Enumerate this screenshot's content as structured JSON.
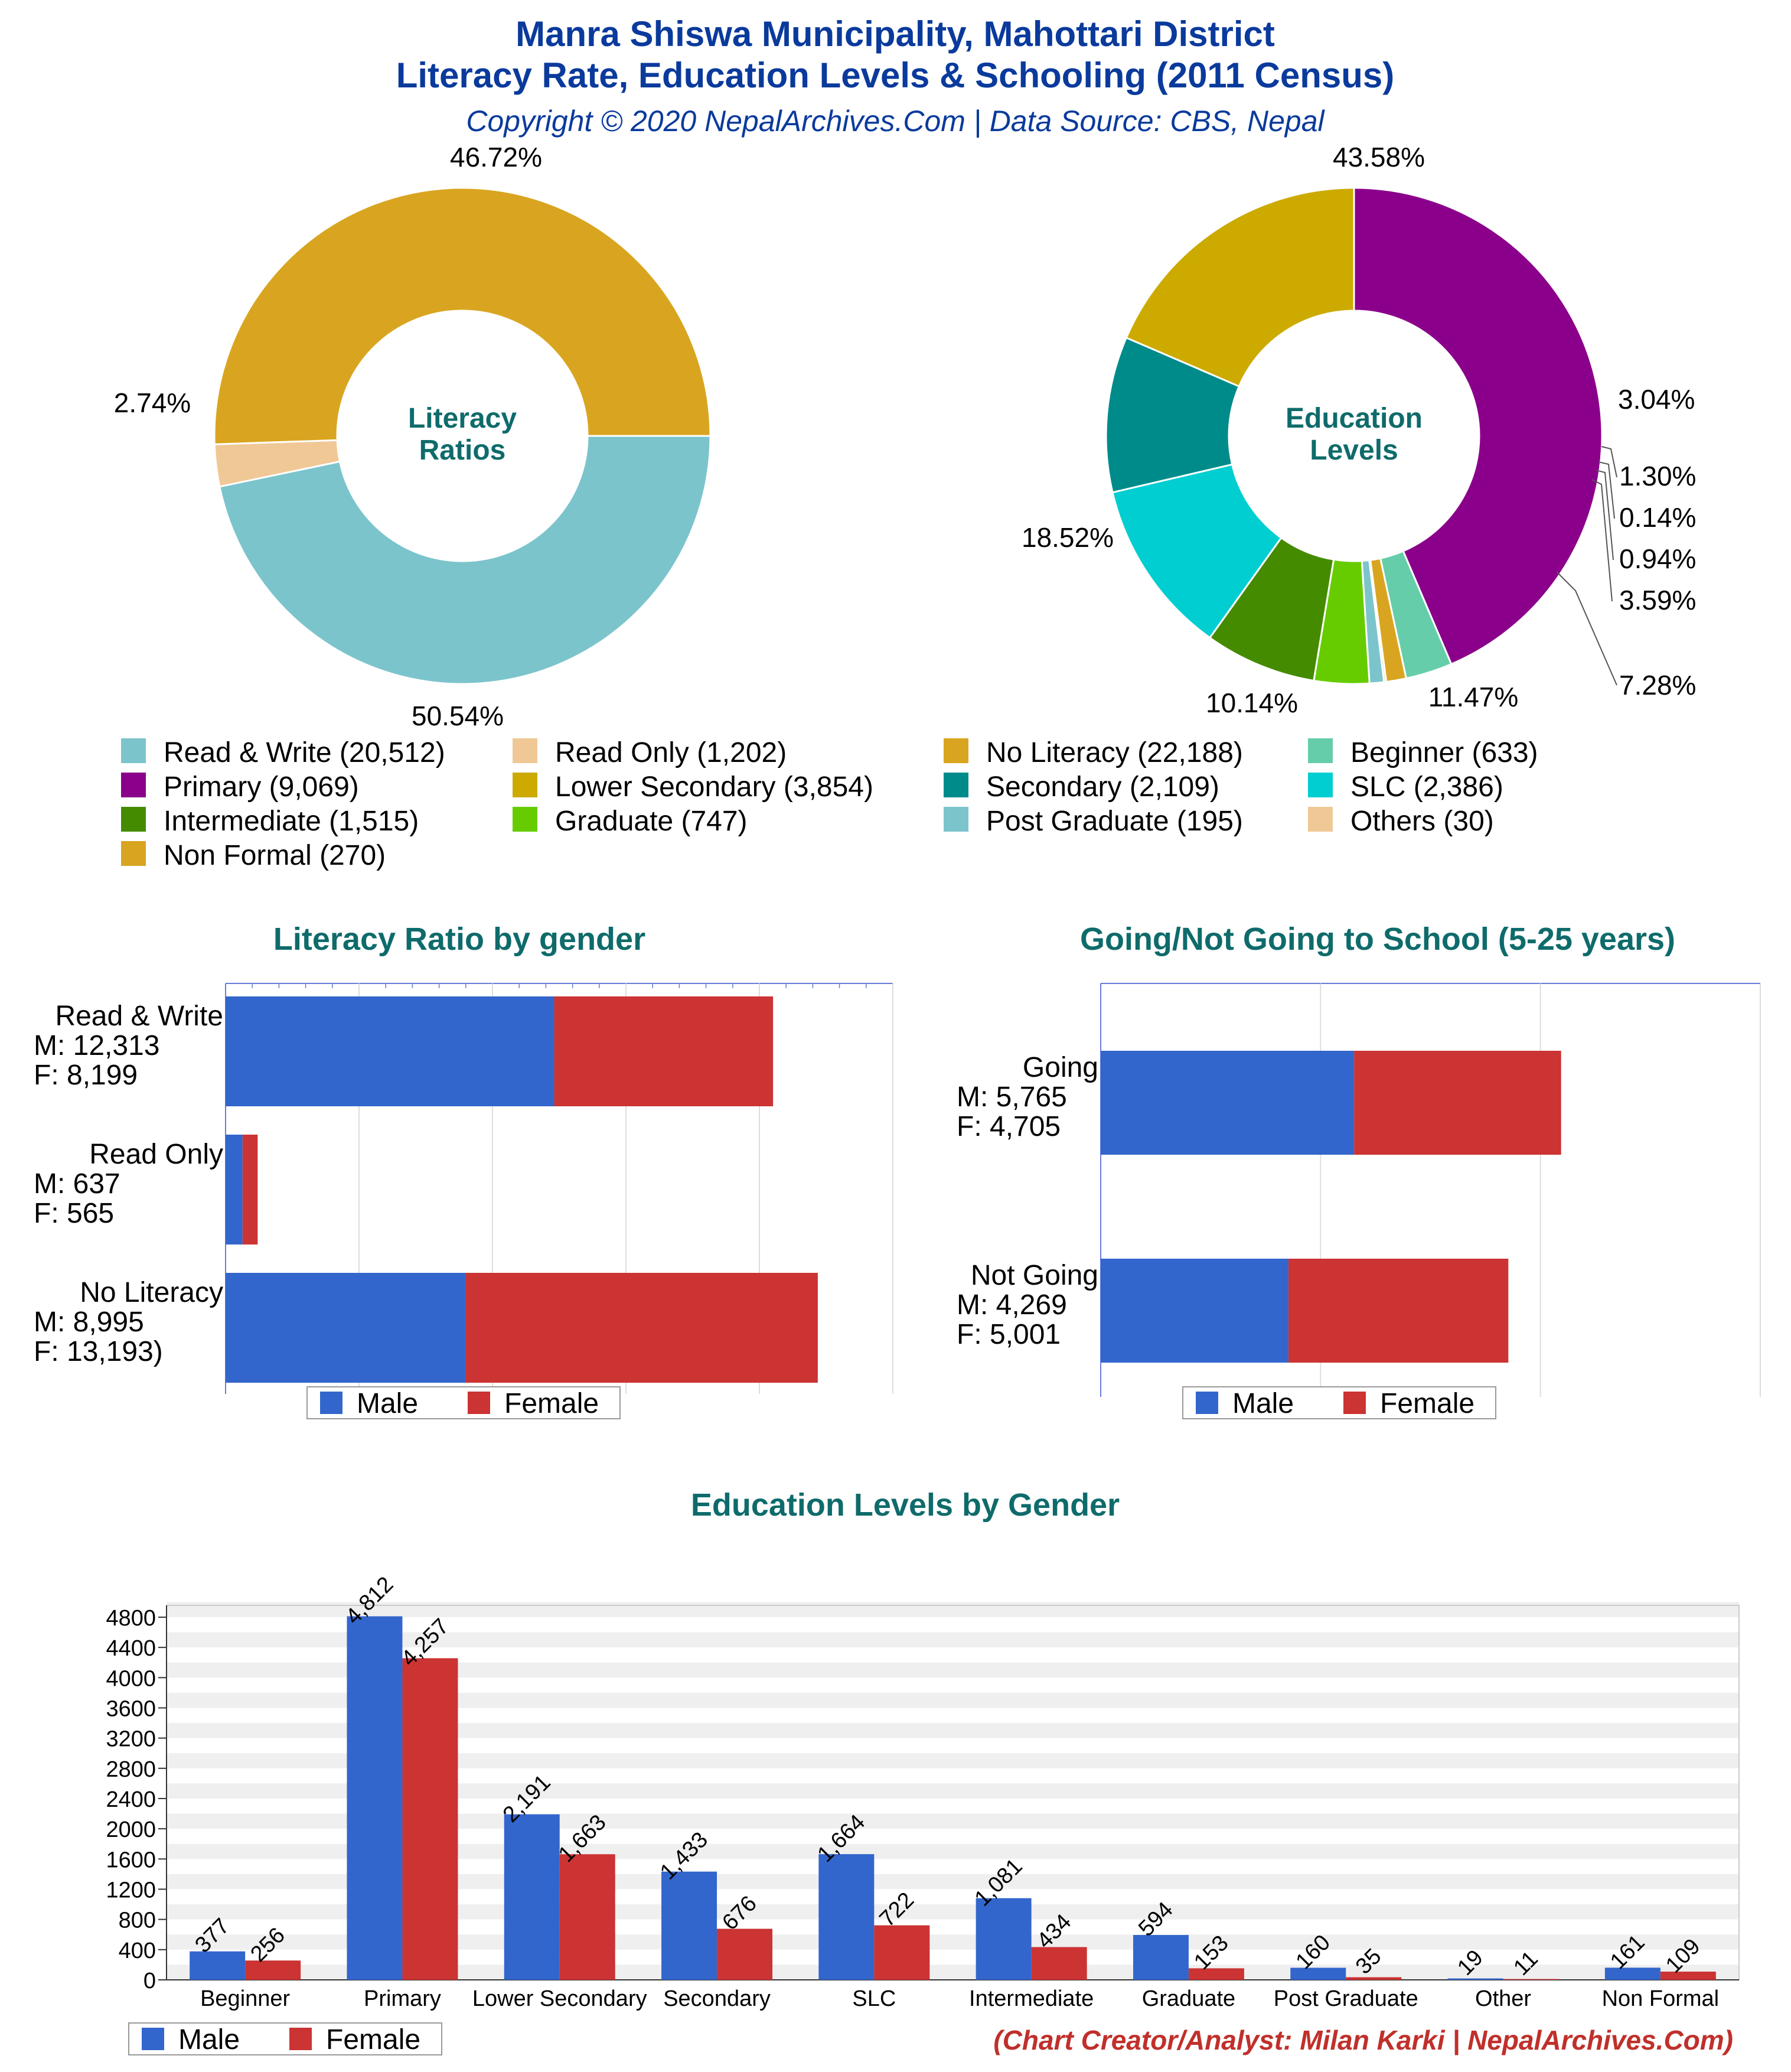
{
  "header": {
    "title_line1": "Manra Shiswa Municipality, Mahottari District",
    "title_line2": "Literacy Rate, Education Levels & Schooling (2011 Census)",
    "subtitle": "Copyright © 2020 NepalArchives.Com | Data Source: CBS, Nepal"
  },
  "colors": {
    "title": "#0a3a9c",
    "section_title": "#0f6b6b",
    "male": "#3366cc",
    "female": "#cc3333",
    "footer": "#c0302b"
  },
  "chart_data": [
    {
      "type": "pie",
      "center_label_line1": "Literacy",
      "center_label_line2": "Ratios",
      "slices": [
        {
          "label": "Read & Write",
          "value": 20512,
          "percent_label": "46.72%",
          "color": "#7cc4cc"
        },
        {
          "label": "Read Only",
          "value": 1202,
          "percent_label": "2.74%",
          "color": "#f0c896"
        },
        {
          "label": "No Literacy",
          "value": 22188,
          "percent_label": "50.54%",
          "color": "#d9a520"
        }
      ]
    },
    {
      "type": "pie",
      "center_label_line1": "Education",
      "center_label_line2": "Levels",
      "slices": [
        {
          "label": "Primary",
          "value": 9069,
          "percent_label": "43.58%",
          "color": "#8b008b"
        },
        {
          "label": "Beginner",
          "value": 633,
          "percent_label": "3.04%",
          "color": "#66cdaa"
        },
        {
          "label": "Non Formal",
          "value": 270,
          "percent_label": "1.30%",
          "color": "#d9a520"
        },
        {
          "label": "Others",
          "value": 30,
          "percent_label": "0.14%",
          "color": "#f0c896"
        },
        {
          "label": "Post Graduate",
          "value": 195,
          "percent_label": "0.94%",
          "color": "#7cc4cc"
        },
        {
          "label": "Graduate",
          "value": 747,
          "percent_label": "3.59%",
          "color": "#66cc00"
        },
        {
          "label": "Intermediate",
          "value": 1515,
          "percent_label": "7.28%",
          "color": "#458b00"
        },
        {
          "label": "SLC",
          "value": 2386,
          "percent_label": "11.47%",
          "color": "#00ced1"
        },
        {
          "label": "Secondary",
          "value": 2109,
          "percent_label": "10.14%",
          "color": "#008b8b"
        },
        {
          "label": "Lower Secondary",
          "value": 3854,
          "percent_label": "18.52%",
          "color": "#ccaa00"
        }
      ]
    },
    {
      "type": "bar",
      "orientation": "horizontal",
      "stacked": true,
      "title": "Literacy Ratio by gender",
      "xlim": [
        0,
        25000
      ],
      "categories": [
        {
          "lines": [
            "Read & Write",
            "M: 12,313",
            "F: 8,199"
          ]
        },
        {
          "lines": [
            "Read Only",
            "M: 637",
            "F: 565"
          ]
        },
        {
          "lines": [
            "No Literacy",
            "M: 8,995",
            "F: 13,193)"
          ]
        }
      ],
      "series": [
        {
          "name": "Male",
          "values": [
            12313,
            637,
            8995
          ]
        },
        {
          "name": "Female",
          "values": [
            8199,
            565,
            13193
          ]
        }
      ],
      "legend": "bottom"
    },
    {
      "type": "bar",
      "orientation": "horizontal",
      "stacked": true,
      "title": "Going/Not Going to School (5-25 years)",
      "xlim": [
        0,
        15000
      ],
      "categories": [
        {
          "lines": [
            "Going",
            "M: 5,765",
            "F: 4,705"
          ]
        },
        {
          "lines": [
            "Not Going",
            "M: 4,269",
            "F: 5,001"
          ]
        }
      ],
      "series": [
        {
          "name": "Male",
          "values": [
            5765,
            4269
          ]
        },
        {
          "name": "Female",
          "values": [
            4705,
            5001
          ]
        }
      ],
      "legend": "bottom"
    },
    {
      "type": "bar",
      "orientation": "vertical",
      "title": "Education Levels by Gender",
      "ylim": [
        0,
        4800
      ],
      "yticks": [
        "0",
        "400",
        "800",
        "1200",
        "1600",
        "2000",
        "2400",
        "2800",
        "3200",
        "3600",
        "4000",
        "4400",
        "4800"
      ],
      "categories": [
        "Beginner",
        "Primary",
        "Lower Secondary",
        "Secondary",
        "SLC",
        "Intermediate",
        "Graduate",
        "Post Graduate",
        "Other",
        "Non Formal"
      ],
      "series": [
        {
          "name": "Male",
          "values": [
            377,
            4812,
            2191,
            1433,
            1664,
            1081,
            594,
            160,
            19,
            161
          ],
          "labels": [
            "377",
            "4,812",
            "2,191",
            "1,433",
            "1,664",
            "1,081",
            "594",
            "160",
            "19",
            "161"
          ]
        },
        {
          "name": "Female",
          "values": [
            256,
            4257,
            1663,
            676,
            722,
            434,
            153,
            35,
            11,
            109
          ],
          "labels": [
            "256",
            "4,257",
            "1,663",
            "676",
            "722",
            "434",
            "153",
            "35",
            "11",
            "109"
          ]
        }
      ],
      "legend": "bottom-left"
    }
  ],
  "pie_legend": [
    {
      "text": "Read & Write (20,512)",
      "color": "#7cc4cc"
    },
    {
      "text": "Read Only (1,202)",
      "color": "#f0c896"
    },
    {
      "text": "No Literacy (22,188)",
      "color": "#d9a520"
    },
    {
      "text": "Beginner (633)",
      "color": "#66cdaa"
    },
    {
      "text": "Primary (9,069)",
      "color": "#8b008b"
    },
    {
      "text": "Lower Secondary (3,854)",
      "color": "#ccaa00"
    },
    {
      "text": "Secondary (2,109)",
      "color": "#008b8b"
    },
    {
      "text": "SLC (2,386)",
      "color": "#00ced1"
    },
    {
      "text": "Intermediate (1,515)",
      "color": "#458b00"
    },
    {
      "text": "Graduate (747)",
      "color": "#66cc00"
    },
    {
      "text": "Post Graduate (195)",
      "color": "#7cc4cc"
    },
    {
      "text": "Others (30)",
      "color": "#f0c896"
    },
    {
      "text": "Non Formal (270)",
      "color": "#d9a520"
    }
  ],
  "legend_labels": {
    "male": "Male",
    "female": "Female"
  },
  "footer": "(Chart Creator/Analyst: Milan Karki | NepalArchives.Com)"
}
